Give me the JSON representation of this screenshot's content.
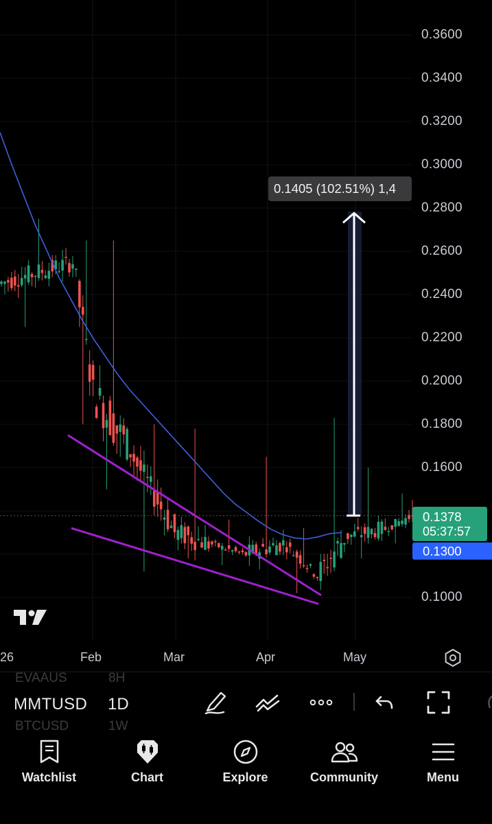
{
  "chart": {
    "price_axis_labels": [
      "0.3600",
      "0.3400",
      "0.3200",
      "0.3000",
      "0.2800",
      "0.2600",
      "0.2400",
      "0.2200",
      "0.2000",
      "0.1800",
      "0.1600",
      "0.1000"
    ],
    "time_axis_labels": {
      "year": "26",
      "feb": "Feb",
      "mar": "Mar",
      "apr": "Apr",
      "may": "May"
    },
    "measure_label": "0.1405 (102.51%) 1,4",
    "current_price": "0.1378",
    "countdown": "05:37:57",
    "ma_price": "0.1300",
    "colors": {
      "up": "#26a17a",
      "down": "#ef5350",
      "ma": "#3f5fe0",
      "trendline": "#a020d0",
      "measure": "#ffffff",
      "price_box": "#26a17a",
      "ma_box": "#2962ff"
    }
  },
  "chart_data": {
    "type": "candlestick",
    "symbol": "MMTUSD",
    "interval": "1D",
    "ylim": [
      0.09,
      0.37
    ],
    "y_ticks": [
      0.1,
      0.16,
      0.18,
      0.2,
      0.22,
      0.24,
      0.26,
      0.28,
      0.3,
      0.32,
      0.34,
      0.36
    ],
    "x_ticks": [
      "26",
      "Feb",
      "Mar",
      "Apr",
      "May"
    ],
    "last_price": 0.1378,
    "moving_average": {
      "last_value": 0.13,
      "values": [
        0.315,
        0.3,
        0.286,
        0.272,
        0.26,
        0.248,
        0.238,
        0.228,
        0.219,
        0.211,
        0.203,
        0.196,
        0.19,
        0.184,
        0.178,
        0.172,
        0.166,
        0.16,
        0.154,
        0.148,
        0.143,
        0.139,
        0.135,
        0.1315,
        0.129,
        0.1275,
        0.127,
        0.128,
        0.1295,
        0.13
      ]
    },
    "measure": {
      "from": 0.1378,
      "to": 0.2783,
      "change": 0.1405,
      "change_pct": 102.51
    },
    "wedge_lines": [
      {
        "start": 0.175,
        "end": 0.101
      },
      {
        "start": 0.132,
        "end": 0.097
      }
    ],
    "ohlc_segments": [
      {
        "label": "late Jan",
        "open": 0.245,
        "high": 0.275,
        "low": 0.225,
        "close": 0.255
      },
      {
        "label": "end Jan",
        "open": 0.255,
        "high": 0.265,
        "low": 0.18,
        "close": 0.195
      },
      {
        "label": "early Feb",
        "open": 0.195,
        "high": 0.265,
        "low": 0.15,
        "close": 0.17
      },
      {
        "label": "mid Feb",
        "open": 0.17,
        "high": 0.18,
        "low": 0.112,
        "close": 0.13
      },
      {
        "label": "late Feb",
        "open": 0.13,
        "high": 0.178,
        "low": 0.118,
        "close": 0.125
      },
      {
        "label": "early Mar",
        "open": 0.125,
        "high": 0.136,
        "low": 0.115,
        "close": 0.12
      },
      {
        "label": "mid Mar",
        "open": 0.12,
        "high": 0.165,
        "low": 0.118,
        "close": 0.125
      },
      {
        "label": "late Mar",
        "open": 0.125,
        "high": 0.132,
        "low": 0.102,
        "close": 0.11
      },
      {
        "label": "early Apr",
        "open": 0.11,
        "high": 0.183,
        "low": 0.11,
        "close": 0.128
      },
      {
        "label": "mid Apr",
        "open": 0.128,
        "high": 0.16,
        "low": 0.118,
        "close": 0.132
      },
      {
        "label": "late Apr",
        "open": 0.132,
        "high": 0.148,
        "low": 0.125,
        "close": 0.1378
      }
    ]
  },
  "symbol_bar": {
    "ghost_above_symbol": "EVAAUS",
    "ghost_above_interval": "8H",
    "symbol": "MMTUSD",
    "interval": "1D",
    "ghost_below_symbol": "BTCUSD",
    "ghost_below_interval": "1W",
    "tools": [
      "pen-icon",
      "trend-icon",
      "more-icon",
      "undo-icon",
      "fullscreen-icon"
    ]
  },
  "tabs": [
    {
      "label": "Watchlist",
      "icon": "bookmark-icon"
    },
    {
      "label": "Chart",
      "icon": "chart-icon"
    },
    {
      "label": "Explore",
      "icon": "compass-icon"
    },
    {
      "label": "Community",
      "icon": "people-icon"
    },
    {
      "label": "Menu",
      "icon": "menu-icon"
    }
  ]
}
